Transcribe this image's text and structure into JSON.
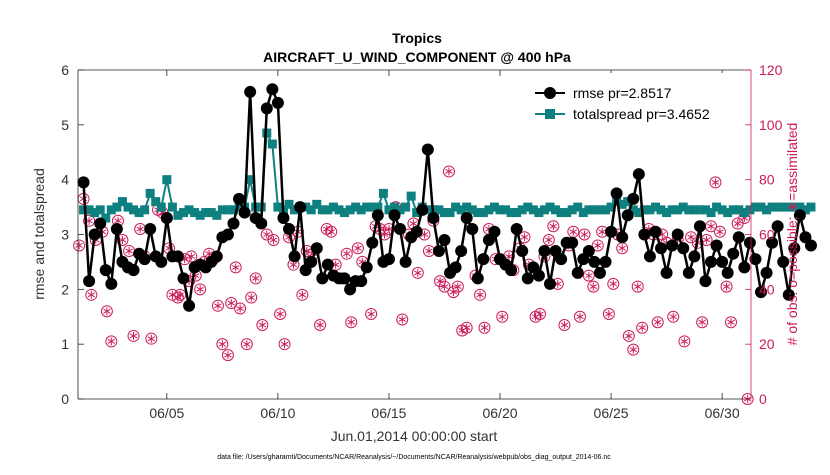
{
  "chart_data": {
    "type": "line",
    "title": "Tropics",
    "subtitle": "AIRCRAFT_U_WIND_COMPONENT @ 400 hPa",
    "xlabel": "Jun.01,2014 00:00:00 start",
    "ylabel_left": "rmse and totalspread",
    "ylabel_right": "# of obs: o=possible; ∗=assimilated",
    "footnote": "data file: /Users/gharamti/Documents/NCAR/Reanalysis/~/Documents/NCAR/Reanalysis/webpub/obs_diag_output_2014-06.nc",
    "xlim_days": [
      1,
      31.3
    ],
    "ylim_left": [
      0,
      6
    ],
    "ylim_right": [
      0,
      120
    ],
    "x_ticks": [
      5,
      10,
      15,
      20,
      25,
      30
    ],
    "x_tick_labels": [
      "06/05",
      "06/10",
      "06/15",
      "06/20",
      "06/25",
      "06/30"
    ],
    "y_ticks_left": [
      0,
      1,
      2,
      3,
      4,
      5,
      6
    ],
    "y_ticks_right": [
      0,
      20,
      40,
      60,
      80,
      100,
      120
    ],
    "legend_position": "top-right",
    "grid": false,
    "colors": {
      "rmse": "#000000",
      "totalspread": "#0f8080",
      "obs": "#cc1b5c"
    },
    "series": [
      {
        "name": "rmse pr=2.8517",
        "marker": "circle",
        "values": [
          3.95,
          2.15,
          3.0,
          3.2,
          2.35,
          2.1,
          3.1,
          2.5,
          2.4,
          2.35,
          2.65,
          2.55,
          3.1,
          2.6,
          2.5,
          3.3,
          2.6,
          2.6,
          2.2,
          1.7,
          2.4,
          2.45,
          2.4,
          2.5,
          2.6,
          2.95,
          3.0,
          3.2,
          3.65,
          3.4,
          5.6,
          3.3,
          3.2,
          5.3,
          5.65,
          5.4,
          3.3,
          3.1,
          2.6,
          3.5,
          2.35,
          2.5,
          2.75,
          2.2,
          2.45,
          2.25,
          2.2,
          2.2,
          2.0,
          2.15,
          2.15,
          2.4,
          2.85,
          3.35,
          2.5,
          2.55,
          3.35,
          3.1,
          2.5,
          2.95,
          3.05,
          3.45,
          4.55,
          3.3,
          2.7,
          2.9,
          2.3,
          2.4,
          2.7,
          3.3,
          3.1,
          2.2,
          2.55,
          2.9,
          3.05,
          2.55,
          2.45,
          2.35,
          3.1,
          2.7,
          2.2,
          2.4,
          2.25,
          2.7,
          2.1,
          2.7,
          2.55,
          2.85,
          2.85,
          2.3,
          2.55,
          2.7,
          2.5,
          2.3,
          2.5,
          3.05,
          3.75,
          2.95,
          3.35,
          3.65,
          4.1,
          3.0,
          2.6,
          3.05,
          2.75,
          2.3,
          2.8,
          3.0,
          2.75,
          2.3,
          2.6,
          3.15,
          2.15,
          2.5,
          2.8,
          2.5,
          2.3,
          2.65,
          2.95,
          2.4,
          2.85,
          2.55,
          1.95,
          2.3,
          2.85,
          3.15,
          2.5,
          1.9,
          2.75,
          3.35,
          2.95,
          2.8
        ]
      },
      {
        "name": "totalspread pr=3.4652",
        "marker": "square",
        "values": [
          3.45,
          3.45,
          3.4,
          3.45,
          3.3,
          3.45,
          3.5,
          3.6,
          3.5,
          3.45,
          3.4,
          3.45,
          3.75,
          3.6,
          3.5,
          4.0,
          3.5,
          3.35,
          3.4,
          3.45,
          3.4,
          3.35,
          3.4,
          3.4,
          3.35,
          3.45,
          3.45,
          3.45,
          3.5,
          3.5,
          4.0,
          3.5,
          3.5,
          4.85,
          4.65,
          3.5,
          3.45,
          3.55,
          3.45,
          3.5,
          3.5,
          3.45,
          3.55,
          3.45,
          3.45,
          3.5,
          3.45,
          3.4,
          3.45,
          3.5,
          3.45,
          3.5,
          3.5,
          3.5,
          3.75,
          3.45,
          3.5,
          3.45,
          3.5,
          3.7,
          3.4,
          3.5,
          3.45,
          3.45,
          3.45,
          3.4,
          3.4,
          3.5,
          3.45,
          3.5,
          3.45,
          3.4,
          3.4,
          3.45,
          3.5,
          3.45,
          3.45,
          3.4,
          3.4,
          3.45,
          3.5,
          3.45,
          3.4,
          3.45,
          3.5,
          3.45,
          3.4,
          3.4,
          3.45,
          3.5,
          3.4,
          3.45,
          3.45,
          3.45,
          3.45,
          3.5,
          3.6,
          3.55,
          3.6,
          3.45,
          3.4,
          3.45,
          3.45,
          3.5,
          3.45,
          3.4,
          3.45,
          3.45,
          3.5,
          3.45,
          3.45,
          3.45,
          3.45,
          3.4,
          3.5,
          3.45,
          3.4,
          3.45,
          3.45,
          3.4,
          3.45,
          3.5,
          3.5,
          3.45,
          3.5,
          3.5,
          3.5,
          3.5,
          3.5,
          3.5,
          3.45,
          3.5
        ]
      },
      {
        "name": "# of obs possible / assimilated",
        "axis": "right",
        "marker": "circle-asterisk",
        "points": [
          [
            1.05,
            56
          ],
          [
            1.25,
            73
          ],
          [
            1.5,
            65
          ],
          [
            1.6,
            38
          ],
          [
            1.8,
            58
          ],
          [
            2.1,
            61
          ],
          [
            2.3,
            32
          ],
          [
            2.5,
            21
          ],
          [
            2.8,
            65
          ],
          [
            3.0,
            58
          ],
          [
            3.3,
            54
          ],
          [
            3.5,
            23
          ],
          [
            3.8,
            62
          ],
          [
            4.0,
            52
          ],
          [
            4.3,
            22
          ],
          [
            4.6,
            69
          ],
          [
            4.8,
            68
          ],
          [
            5.0,
            66
          ],
          [
            5.1,
            55
          ],
          [
            5.25,
            38
          ],
          [
            5.5,
            37
          ],
          [
            5.6,
            38
          ],
          [
            5.8,
            51
          ],
          [
            6.0,
            43
          ],
          [
            6.1,
            52
          ],
          [
            6.3,
            45
          ],
          [
            6.5,
            40
          ],
          [
            6.7,
            50
          ],
          [
            6.9,
            53
          ],
          [
            7.1,
            51
          ],
          [
            7.3,
            34
          ],
          [
            7.5,
            20
          ],
          [
            7.75,
            16
          ],
          [
            7.9,
            35
          ],
          [
            8.1,
            48
          ],
          [
            8.3,
            33
          ],
          [
            8.6,
            20
          ],
          [
            8.8,
            37
          ],
          [
            9.0,
            44
          ],
          [
            9.3,
            27
          ],
          [
            9.5,
            60
          ],
          [
            9.8,
            58
          ],
          [
            10.1,
            31
          ],
          [
            10.3,
            20
          ],
          [
            10.5,
            59
          ],
          [
            10.7,
            49
          ],
          [
            10.9,
            61
          ],
          [
            11.1,
            38
          ],
          [
            11.3,
            54
          ],
          [
            11.6,
            53
          ],
          [
            11.9,
            27
          ],
          [
            12.2,
            62
          ],
          [
            12.4,
            61
          ],
          [
            12.6,
            49
          ],
          [
            12.9,
            44
          ],
          [
            13.1,
            53
          ],
          [
            13.3,
            28
          ],
          [
            13.6,
            55
          ],
          [
            13.8,
            50
          ],
          [
            14.2,
            31
          ],
          [
            14.4,
            63
          ],
          [
            14.6,
            62
          ],
          [
            14.8,
            60
          ],
          [
            15.0,
            62
          ],
          [
            15.3,
            70
          ],
          [
            15.6,
            29
          ],
          [
            15.9,
            60
          ],
          [
            16.1,
            64
          ],
          [
            16.3,
            46
          ],
          [
            16.6,
            60
          ],
          [
            16.8,
            54
          ],
          [
            17.0,
            65
          ],
          [
            17.3,
            43
          ],
          [
            17.5,
            41
          ],
          [
            17.7,
            83
          ],
          [
            17.9,
            39
          ],
          [
            18.1,
            41
          ],
          [
            18.3,
            25
          ],
          [
            18.5,
            26
          ],
          [
            18.9,
            45
          ],
          [
            19.1,
            38
          ],
          [
            19.3,
            26
          ],
          [
            19.5,
            62
          ],
          [
            19.8,
            51
          ],
          [
            20.1,
            30
          ],
          [
            20.4,
            52
          ],
          [
            20.6,
            47
          ],
          [
            20.9,
            55
          ],
          [
            21.1,
            59
          ],
          [
            21.3,
            49
          ],
          [
            21.6,
            30
          ],
          [
            21.8,
            31
          ],
          [
            22.0,
            52
          ],
          [
            22.2,
            58
          ],
          [
            22.4,
            63
          ],
          [
            22.6,
            42
          ],
          [
            22.9,
            27
          ],
          [
            23.1,
            56
          ],
          [
            23.3,
            61
          ],
          [
            23.6,
            30
          ],
          [
            23.8,
            60
          ],
          [
            24.0,
            45
          ],
          [
            24.2,
            41
          ],
          [
            24.4,
            56
          ],
          [
            24.6,
            61
          ],
          [
            24.9,
            31
          ],
          [
            25.1,
            42
          ],
          [
            25.3,
            60
          ],
          [
            25.5,
            55
          ],
          [
            25.8,
            23
          ],
          [
            26.0,
            18
          ],
          [
            26.2,
            41
          ],
          [
            26.4,
            26
          ],
          [
            26.7,
            62
          ],
          [
            26.9,
            60
          ],
          [
            27.1,
            28
          ],
          [
            27.3,
            60
          ],
          [
            27.5,
            57
          ],
          [
            27.8,
            30
          ],
          [
            28.0,
            58
          ],
          [
            28.3,
            21
          ],
          [
            28.6,
            59
          ],
          [
            28.9,
            57
          ],
          [
            29.1,
            28
          ],
          [
            29.3,
            58
          ],
          [
            29.5,
            63
          ],
          [
            29.7,
            79
          ],
          [
            29.9,
            61
          ],
          [
            30.2,
            41
          ],
          [
            30.4,
            28
          ],
          [
            30.7,
            64
          ],
          [
            31.0,
            66
          ],
          [
            31.15,
            0
          ]
        ]
      }
    ]
  }
}
